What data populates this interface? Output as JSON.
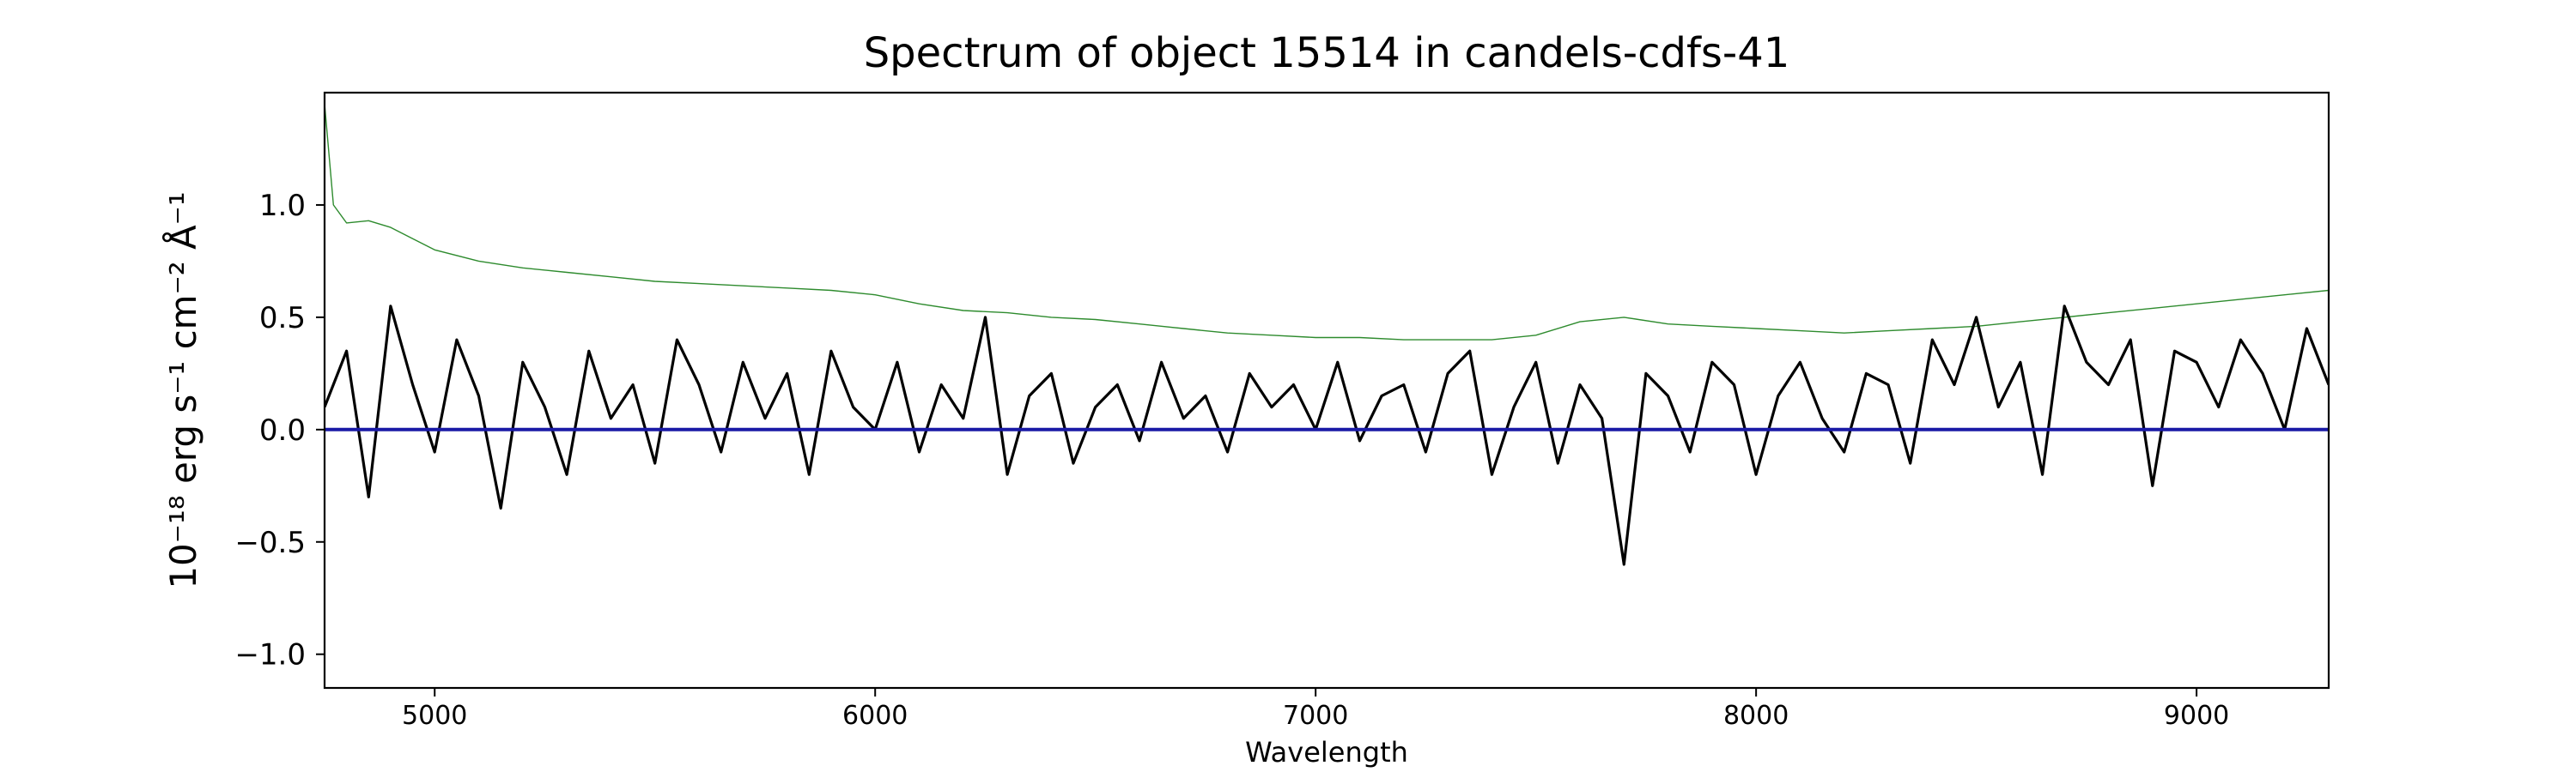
{
  "chart_data": {
    "type": "line",
    "title": "Spectrum of object 15514 in candels-cdfs-41",
    "xlabel": "Wavelength",
    "ylabel": "10⁻¹⁸ erg s⁻¹ cm⁻² Å⁻¹",
    "xlim": [
      4750,
      9300
    ],
    "ylim": [
      -1.15,
      1.5
    ],
    "x_ticks": [
      5000,
      6000,
      7000,
      8000,
      9000
    ],
    "y_ticks": [
      -1.0,
      -0.5,
      0.0,
      0.5,
      1.0
    ],
    "y_tick_labels": [
      "−1.0",
      "−0.5",
      "0.0",
      "0.5",
      "1.0"
    ],
    "grid": false,
    "legend": "none",
    "series": [
      {
        "role": "flux",
        "color": "#000000",
        "x": [
          4750,
          4800,
          4850,
          4900,
          4950,
          5000,
          5050,
          5100,
          5150,
          5200,
          5250,
          5300,
          5350,
          5400,
          5450,
          5500,
          5550,
          5600,
          5650,
          5700,
          5750,
          5800,
          5850,
          5900,
          5950,
          6000,
          6050,
          6100,
          6150,
          6200,
          6250,
          6300,
          6350,
          6400,
          6450,
          6500,
          6550,
          6600,
          6650,
          6700,
          6750,
          6800,
          6850,
          6900,
          6950,
          7000,
          7050,
          7100,
          7150,
          7200,
          7250,
          7300,
          7350,
          7400,
          7450,
          7500,
          7550,
          7600,
          7650,
          7700,
          7750,
          7800,
          7850,
          7900,
          7950,
          8000,
          8050,
          8100,
          8150,
          8200,
          8250,
          8300,
          8350,
          8400,
          8450,
          8500,
          8550,
          8600,
          8650,
          8700,
          8750,
          8800,
          8850,
          8900,
          8950,
          9000,
          9050,
          9100,
          9150,
          9200,
          9250,
          9300
        ],
        "y": [
          0.1,
          0.35,
          -0.3,
          0.55,
          0.2,
          -0.1,
          0.4,
          0.15,
          -0.35,
          0.3,
          0.1,
          -0.2,
          0.35,
          0.05,
          0.2,
          -0.15,
          0.4,
          0.2,
          -0.1,
          0.3,
          0.05,
          0.25,
          -0.2,
          0.35,
          0.1,
          0.0,
          0.3,
          -0.1,
          0.2,
          0.05,
          0.5,
          -0.2,
          0.15,
          0.25,
          -0.15,
          0.1,
          0.2,
          -0.05,
          0.3,
          0.05,
          0.15,
          -0.1,
          0.25,
          0.1,
          0.2,
          0.0,
          0.3,
          -0.05,
          0.15,
          0.2,
          -0.1,
          0.25,
          0.35,
          -0.2,
          0.1,
          0.3,
          -0.15,
          0.2,
          0.05,
          -0.6,
          0.25,
          0.15,
          -0.1,
          0.3,
          0.2,
          -0.2,
          0.15,
          0.3,
          0.05,
          -0.1,
          0.25,
          0.2,
          -0.15,
          0.4,
          0.2,
          0.5,
          0.1,
          0.3,
          -0.2,
          0.55,
          0.3,
          0.2,
          0.4,
          -0.25,
          0.35,
          0.3,
          0.1,
          0.4,
          0.25,
          0.0,
          0.45,
          0.2
        ]
      },
      {
        "role": "error",
        "color": "#2e8b2e",
        "x": [
          4750,
          4770,
          4800,
          4850,
          4900,
          4950,
          5000,
          5100,
          5200,
          5300,
          5400,
          5500,
          5600,
          5700,
          5800,
          5900,
          6000,
          6100,
          6200,
          6300,
          6400,
          6500,
          6600,
          6700,
          6800,
          6900,
          7000,
          7100,
          7200,
          7300,
          7400,
          7500,
          7600,
          7700,
          7800,
          7900,
          8000,
          8100,
          8200,
          8300,
          8400,
          8500,
          8600,
          8700,
          8800,
          8900,
          9000,
          9100,
          9200,
          9300
        ],
        "y": [
          1.45,
          1.0,
          0.92,
          0.93,
          0.9,
          0.85,
          0.8,
          0.75,
          0.72,
          0.7,
          0.68,
          0.66,
          0.65,
          0.64,
          0.63,
          0.62,
          0.6,
          0.56,
          0.53,
          0.52,
          0.5,
          0.49,
          0.47,
          0.45,
          0.43,
          0.42,
          0.41,
          0.41,
          0.4,
          0.4,
          0.4,
          0.42,
          0.48,
          0.5,
          0.47,
          0.46,
          0.45,
          0.44,
          0.43,
          0.44,
          0.45,
          0.46,
          0.48,
          0.5,
          0.52,
          0.54,
          0.56,
          0.58,
          0.6,
          0.62
        ]
      },
      {
        "role": "model",
        "color": "#1a1aa6",
        "x": [
          4750,
          9300
        ],
        "y": [
          0.0,
          0.0
        ]
      }
    ]
  }
}
